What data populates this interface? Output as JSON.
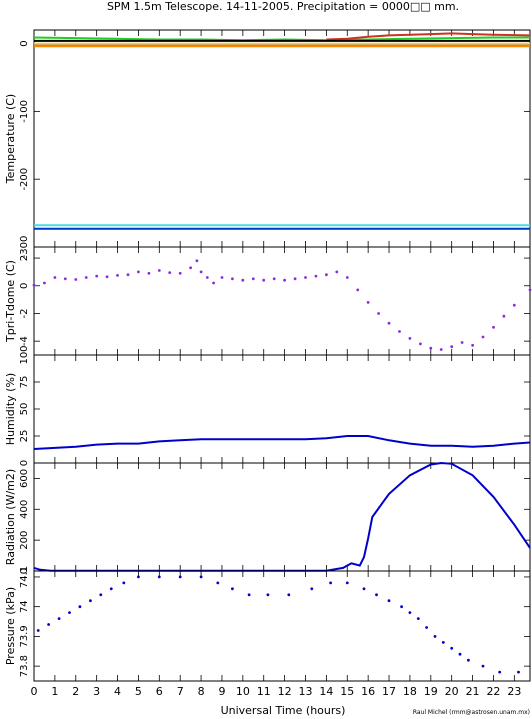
{
  "title": "SPM 1.5m Telescope. 14-11-2005. Precipitation = 0000□□ mm.",
  "xlabel": "Universal Time (hours)",
  "credit": "Raul Michel (rmm@astrosen.unam.mx)",
  "x_ticks": [
    0,
    1,
    2,
    3,
    4,
    5,
    6,
    7,
    8,
    9,
    10,
    11,
    12,
    13,
    14,
    15,
    16,
    17,
    18,
    19,
    20,
    21,
    22,
    23
  ],
  "chart_data": [
    {
      "type": "line",
      "ylabel": "Temperature (C)",
      "xlim": [
        0,
        23.75
      ],
      "ylim": [
        -300,
        20
      ],
      "y_ticks": [
        0,
        -100,
        -200,
        -300
      ],
      "series": [
        {
          "color": "#22cc22",
          "x": [
            0,
            2,
            4,
            6,
            8,
            10,
            12,
            14,
            16,
            18,
            20,
            22,
            23.75
          ],
          "y": [
            9,
            8,
            7,
            6,
            6,
            5,
            6,
            5,
            6,
            7,
            8,
            9,
            9
          ]
        },
        {
          "color": "#cc3322",
          "x": [
            14,
            15,
            16,
            17,
            18,
            19,
            20,
            21,
            22,
            23.75
          ],
          "y": [
            6,
            7,
            10,
            12,
            13,
            14,
            15,
            14,
            13,
            12
          ]
        },
        {
          "color": "#000000",
          "x": [
            0,
            4,
            8,
            12,
            16,
            20,
            23.75
          ],
          "y": [
            4,
            4,
            4,
            4,
            4,
            4,
            4
          ]
        },
        {
          "color": "#f0d060",
          "x": [
            0,
            4,
            8,
            12,
            16,
            20,
            23.75
          ],
          "y": [
            0,
            0,
            0,
            0,
            0,
            0,
            0
          ]
        },
        {
          "color": "#a06030",
          "x": [
            0,
            23.75
          ],
          "y": [
            -3,
            -3
          ]
        },
        {
          "color": "#ff8800",
          "x": [
            0,
            23.75
          ],
          "y": [
            -4,
            -4
          ]
        },
        {
          "color": "#44dddd",
          "x": [
            0,
            23.75
          ],
          "y": [
            -268,
            -268
          ]
        },
        {
          "color": "#0033cc",
          "x": [
            0,
            23.75
          ],
          "y": [
            -273,
            -273
          ]
        }
      ]
    },
    {
      "type": "scatter",
      "ylabel": "Tpri-Tdome (C)",
      "xlim": [
        0,
        23.75
      ],
      "ylim": [
        -5,
        2.8
      ],
      "y_ticks": [
        2,
        0,
        -2,
        -4
      ],
      "series": [
        {
          "color": "#8a2be2",
          "x": [
            0,
            0.5,
            1,
            1.5,
            2,
            2.5,
            3,
            3.5,
            4,
            4.5,
            5,
            5.5,
            6,
            6.5,
            7,
            7.5,
            7.8,
            8,
            8.3,
            8.6,
            9,
            9.5,
            10,
            10.5,
            11,
            11.5,
            12,
            12.5,
            13,
            13.5,
            14,
            14.5,
            15,
            15.5,
            16,
            16.5,
            17,
            17.5,
            18,
            18.5,
            19,
            19.5,
            20,
            20.5,
            21,
            21.5,
            22,
            22.5,
            23,
            23.75
          ],
          "y": [
            0.05,
            0.2,
            0.6,
            0.5,
            0.45,
            0.6,
            0.7,
            0.65,
            0.75,
            0.8,
            1.0,
            0.9,
            1.1,
            0.95,
            0.9,
            1.3,
            1.8,
            1.0,
            0.6,
            0.2,
            0.6,
            0.5,
            0.4,
            0.5,
            0.4,
            0.5,
            0.4,
            0.5,
            0.6,
            0.7,
            0.8,
            1.0,
            0.6,
            -0.3,
            -1.2,
            -2.0,
            -2.7,
            -3.3,
            -3.8,
            -4.2,
            -4.5,
            -4.6,
            -4.4,
            -4.1,
            -4.3,
            -3.7,
            -3.0,
            -2.2,
            -1.4,
            -0.3
          ]
        }
      ]
    },
    {
      "type": "line",
      "ylabel": "Humidity (%)",
      "xlim": [
        0,
        23.75
      ],
      "ylim": [
        0,
        100
      ],
      "y_ticks": [
        0,
        25,
        50,
        75,
        100
      ],
      "series": [
        {
          "color": "#0000cc",
          "x": [
            0,
            1,
            2,
            3,
            4,
            5,
            6,
            7,
            8,
            9,
            10,
            11,
            12,
            13,
            14,
            15,
            16,
            17,
            18,
            19,
            20,
            21,
            22,
            23,
            23.75
          ],
          "y": [
            13,
            14,
            15,
            17,
            18,
            18,
            20,
            21,
            22,
            22,
            22,
            22,
            22,
            22,
            23,
            25,
            25,
            21,
            18,
            16,
            16,
            15,
            16,
            18,
            19
          ]
        }
      ]
    },
    {
      "type": "line",
      "ylabel": "Radiation (W/m2)",
      "xlim": [
        0,
        23.75
      ],
      "ylim": [
        0,
        700
      ],
      "y_ticks": [
        0,
        200,
        400,
        600
      ],
      "series": [
        {
          "color": "#0000cc",
          "x": [
            0,
            0.3,
            0.8,
            2,
            4,
            6,
            8,
            10,
            12,
            14,
            14.8,
            15.2,
            15.6,
            15.8,
            16.0,
            16.2,
            17,
            18,
            19,
            19.5,
            20,
            21,
            22,
            23,
            23.75
          ],
          "y": [
            20,
            8,
            2,
            2,
            2,
            2,
            2,
            2,
            2,
            2,
            20,
            50,
            35,
            90,
            210,
            350,
            500,
            620,
            690,
            700,
            695,
            620,
            480,
            300,
            150
          ]
        }
      ]
    },
    {
      "type": "scatter",
      "ylabel": "Pressure (kPa)",
      "xlim": [
        0,
        23.75
      ],
      "ylim": [
        73.75,
        74.12
      ],
      "y_ticks": [
        73.8,
        73.9,
        74,
        74.1
      ],
      "y_tick_labels": [
        "73.8",
        "73.9",
        "74",
        "74.1"
      ],
      "series": [
        {
          "color": "#0000cc",
          "x": [
            0.2,
            0.7,
            1.2,
            1.7,
            2.2,
            2.7,
            3.2,
            3.7,
            4.3,
            5.0,
            6.0,
            7.0,
            8.0,
            8.8,
            9.5,
            10.3,
            11.2,
            12.2,
            13.3,
            14.2,
            15.0,
            15.8,
            16.4,
            17.0,
            17.6,
            18.0,
            18.4,
            18.8,
            19.2,
            19.6,
            20.0,
            20.4,
            20.8,
            21.5,
            22.3,
            23.2
          ],
          "y": [
            73.92,
            73.94,
            73.96,
            73.98,
            74.0,
            74.02,
            74.04,
            74.06,
            74.08,
            74.1,
            74.1,
            74.1,
            74.1,
            74.08,
            74.06,
            74.04,
            74.04,
            74.04,
            74.06,
            74.08,
            74.08,
            74.06,
            74.04,
            74.02,
            74.0,
            73.98,
            73.96,
            73.93,
            73.9,
            73.88,
            73.86,
            73.84,
            73.82,
            73.8,
            73.78,
            73.78
          ]
        }
      ]
    }
  ]
}
